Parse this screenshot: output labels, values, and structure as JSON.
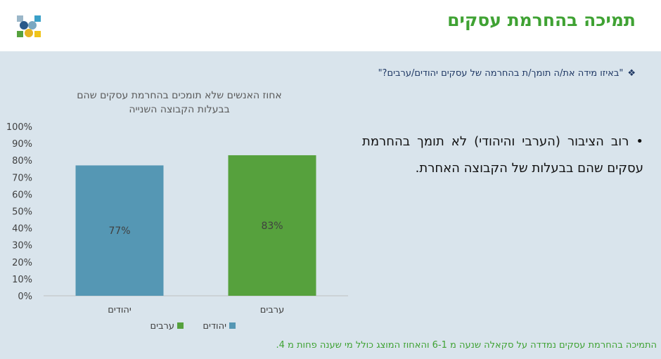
{
  "header": {
    "title": "תמיכה בהחרמת עסקים"
  },
  "question": {
    "marker": "❖",
    "text": "\"באיזו מידה את/ה תומך/ת בהחרמה של עסקים יהודים/ערבים?\""
  },
  "bullet": {
    "marker": "•",
    "text": "רוב הציבור (הערבי והיהודי) לא תומך בהחרמת עסקים שהם בבעלות של הקבוצה האחרת."
  },
  "footnote": "התמיכה בהחרמת עסקים נמדדה על סקאלה שנעה מ 6-1 והאחוז המוצג כולל מי שענה פחות מ 4.",
  "colors": {
    "title_green": "#3fa233",
    "bar_jews": "#5597b4",
    "bar_arabs": "#56a13d",
    "content_bg": "#d9e4ec"
  },
  "chart_data": {
    "type": "bar",
    "title_line1": "אחוז האנשים שלא תומכים בהחרמת עסקים שהם",
    "title_line2": "בבעלות הקבוצה השנייה",
    "categories": [
      "יהודים",
      "ערבים"
    ],
    "values": [
      77,
      83
    ],
    "data_labels": [
      "77%",
      "83%"
    ],
    "colors": [
      "#5597b4",
      "#56a13d"
    ],
    "ylim": [
      0,
      100
    ],
    "yticks": [
      "0%",
      "10%",
      "20%",
      "30%",
      "40%",
      "50%",
      "60%",
      "70%",
      "80%",
      "90%",
      "100%"
    ],
    "legend": [
      {
        "name": "יהודים",
        "color": "#5597b4"
      },
      {
        "name": "ערבים",
        "color": "#56a13d"
      }
    ],
    "legend_position": "bottom",
    "grid": false
  }
}
